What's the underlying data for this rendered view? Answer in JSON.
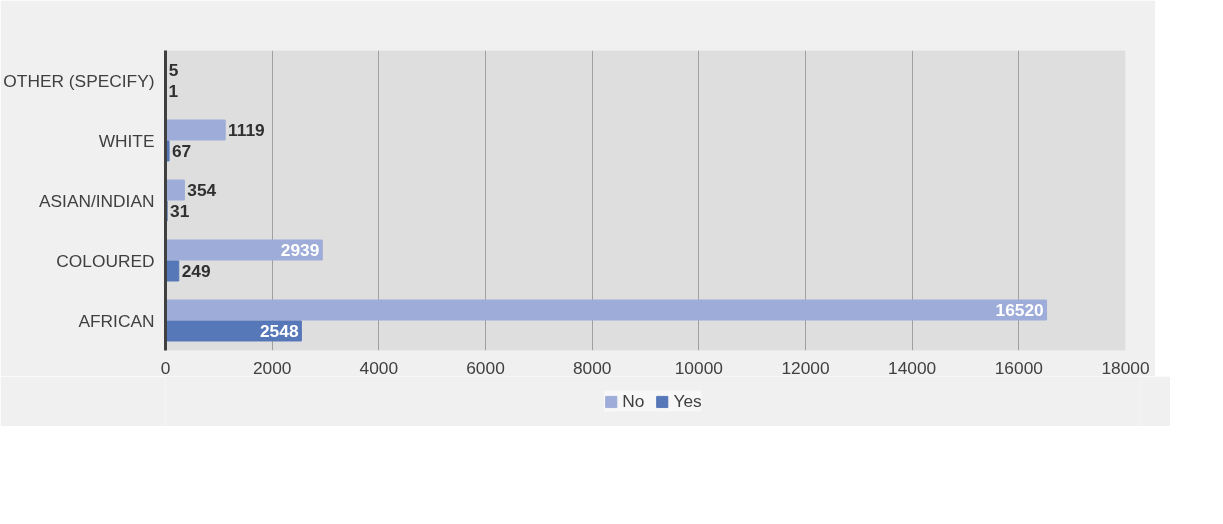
{
  "chart_data": {
    "type": "bar",
    "orientation": "horizontal",
    "categories": [
      "OTHER (SPECIFY)",
      "WHITE",
      "ASIAN/INDIAN",
      "COLOURED",
      "AFRICAN"
    ],
    "series": [
      {
        "name": "No",
        "color": "#9dacd8",
        "values": [
          5,
          1119,
          354,
          2939,
          16520
        ]
      },
      {
        "name": "Yes",
        "color": "#5677b8",
        "values": [
          1,
          67,
          31,
          249,
          2548
        ]
      }
    ],
    "xlim": [
      0,
      18000
    ],
    "xticks": [
      0,
      2000,
      4000,
      6000,
      8000,
      10000,
      12000,
      14000,
      16000,
      18000
    ],
    "grid": "x",
    "legend": "bottom",
    "data_labels": true
  }
}
